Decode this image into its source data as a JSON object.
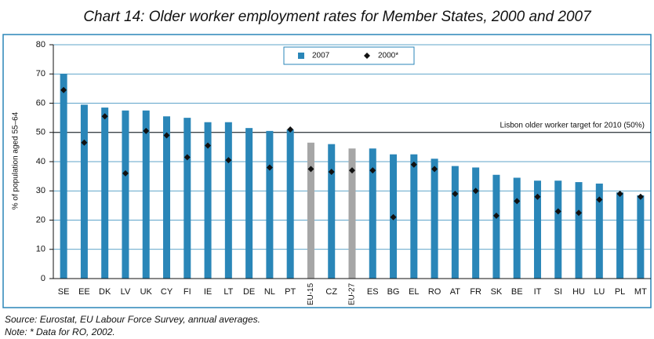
{
  "chart_data": {
    "type": "bar",
    "title": "Chart 14: Older worker employment rates for Member States, 2000 and 2007",
    "y_label": "% of population aged 55–64",
    "categories": [
      "SE",
      "EE",
      "DK",
      "LV",
      "UK",
      "CY",
      "FI",
      "IE",
      "LT",
      "DE",
      "NL",
      "PT",
      "EU-15",
      "CZ",
      "EU-27",
      "ES",
      "BG",
      "EL",
      "RO",
      "AT",
      "FR",
      "SK",
      "BE",
      "IT",
      "SI",
      "HU",
      "LU",
      "PL",
      "MT"
    ],
    "series": [
      {
        "name": "2007",
        "color": "#2a86b8",
        "point_colors": [
          "#2a86b8",
          "#2a86b8",
          "#2a86b8",
          "#2a86b8",
          "#2a86b8",
          "#2a86b8",
          "#2a86b8",
          "#2a86b8",
          "#2a86b8",
          "#2a86b8",
          "#2a86b8",
          "#2a86b8",
          "#a6a6a6",
          "#2a86b8",
          "#a6a6a6",
          "#2a86b8",
          "#2a86b8",
          "#2a86b8",
          "#2a86b8",
          "#2a86b8",
          "#2a86b8",
          "#2a86b8",
          "#2a86b8",
          "#2a86b8",
          "#2a86b8",
          "#2a86b8",
          "#2a86b8",
          "#2a86b8",
          "#2a86b8"
        ],
        "values": [
          70,
          59.5,
          58.5,
          57.5,
          57.5,
          55.5,
          55,
          53.5,
          53.5,
          51.5,
          50.5,
          51,
          46.5,
          46,
          44.5,
          44.5,
          42.5,
          42.5,
          41,
          38.5,
          38,
          35.5,
          34.5,
          33.5,
          33.5,
          33,
          32.5,
          29.5,
          28.5
        ]
      },
      {
        "name": "2000*",
        "color": "#111111",
        "marker": "diamond",
        "values": [
          64.5,
          46.5,
          55.5,
          36,
          50.5,
          49,
          41.5,
          45.5,
          40.5,
          null,
          38,
          51,
          37.5,
          36.5,
          37,
          37,
          21,
          39,
          37.5,
          29,
          30,
          21.5,
          26.5,
          28,
          23,
          22.5,
          27,
          29,
          28
        ]
      }
    ],
    "reference_line": {
      "value": 50,
      "label": "Lisbon older worker target for 2010 (50%)"
    },
    "ylim": [
      0,
      80
    ],
    "yticks": [
      0,
      10,
      20,
      30,
      40,
      50,
      60,
      70,
      80
    ],
    "source": "Source: Eurostat, EU Labour Force Survey, annual averages.",
    "note": "Note: * Data for RO, 2002."
  }
}
